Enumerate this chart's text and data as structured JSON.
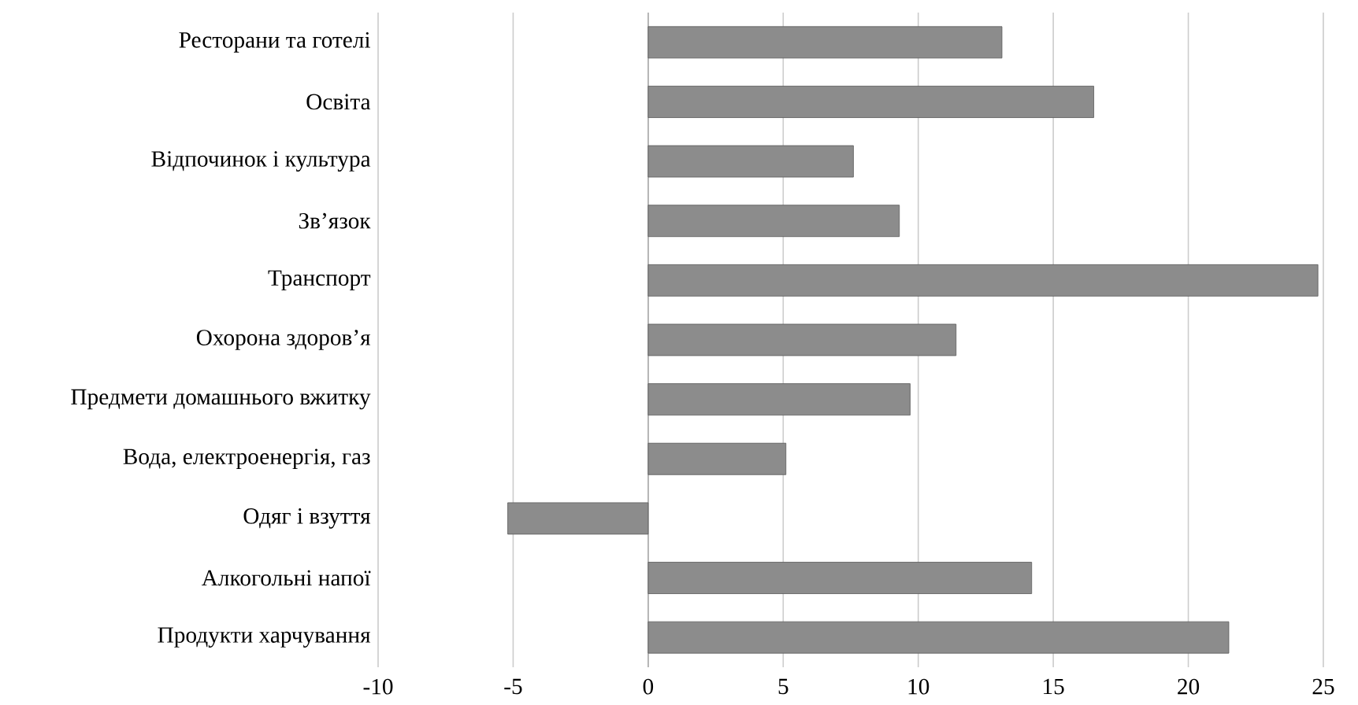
{
  "chart_data": {
    "type": "bar",
    "orientation": "horizontal",
    "categories": [
      "Ресторани та готелі",
      "Освіта",
      "Відпочинок  і культура",
      "Зв’язок",
      "Транспорт",
      "Охорона здоров’я",
      "Предмети домашнього вжитку",
      "Вода, електроенергія, газ",
      "Одяг і взуття",
      "Алкогольні  напої",
      "Продукти харчування"
    ],
    "values": [
      13.1,
      16.5,
      7.6,
      9.3,
      24.8,
      11.4,
      9.7,
      5.1,
      -5.2,
      14.2,
      21.5
    ],
    "color": "#8c8c8c",
    "xlim": [
      -10,
      25
    ],
    "xticks": [
      -10,
      -5,
      0,
      5,
      10,
      15,
      20,
      25
    ],
    "grid": "x"
  }
}
